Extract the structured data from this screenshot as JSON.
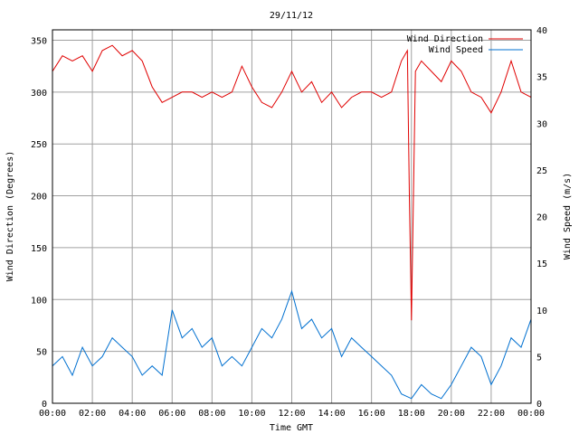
{
  "chart_data": {
    "type": "line",
    "title": "29/11/12",
    "xlabel": "Time GMT",
    "ylabel_left": "Wind Direction (Degrees)",
    "ylabel_right": "Wind Speed (m/s)",
    "x_ticks": [
      "00:00",
      "02:00",
      "04:00",
      "06:00",
      "08:00",
      "10:00",
      "12:00",
      "14:00",
      "16:00",
      "18:00",
      "20:00",
      "22:00",
      "00:00"
    ],
    "x_range_hours": [
      0,
      24
    ],
    "y_left_range": [
      0,
      360
    ],
    "y_left_ticks": [
      0,
      50,
      100,
      150,
      200,
      250,
      300,
      350
    ],
    "y_right_range": [
      0,
      40
    ],
    "y_right_ticks": [
      0,
      5,
      10,
      15,
      20,
      25,
      30,
      35,
      40
    ],
    "grid": true,
    "legend_position": "top-right",
    "series": [
      {
        "name": "Wind Direction",
        "axis": "left",
        "color": "#e00000",
        "x_hours": [
          0,
          0.5,
          1,
          1.5,
          2,
          2.5,
          3,
          3.5,
          4,
          4.5,
          5,
          5.5,
          6,
          6.5,
          7,
          7.5,
          8,
          8.5,
          9,
          9.5,
          10,
          10.5,
          11,
          11.5,
          12,
          12.5,
          13,
          13.5,
          14,
          14.5,
          15,
          15.5,
          16,
          16.5,
          17,
          17.5,
          17.8,
          17.9,
          18,
          18.2,
          18.5,
          19,
          19.5,
          20,
          20.5,
          21,
          21.5,
          22,
          22.5,
          23,
          23.5,
          24
        ],
        "values": [
          320,
          335,
          330,
          335,
          320,
          340,
          345,
          335,
          340,
          330,
          305,
          290,
          295,
          300,
          300,
          295,
          300,
          295,
          300,
          325,
          305,
          290,
          285,
          300,
          320,
          300,
          310,
          290,
          300,
          285,
          295,
          300,
          300,
          295,
          300,
          330,
          340,
          200,
          80,
          320,
          330,
          320,
          310,
          330,
          320,
          300,
          295,
          280,
          300,
          330,
          300,
          295
        ]
      },
      {
        "name": "Wind Speed",
        "axis": "right",
        "color": "#0070d0",
        "x_hours": [
          0,
          0.5,
          1,
          1.5,
          2,
          2.5,
          3,
          3.5,
          4,
          4.5,
          5,
          5.5,
          6,
          6.5,
          7,
          7.5,
          8,
          8.5,
          9,
          9.5,
          10,
          10.5,
          11,
          11.5,
          12,
          12.5,
          13,
          13.5,
          14,
          14.5,
          15,
          15.5,
          16,
          16.5,
          17,
          17.5,
          18,
          18.5,
          19,
          19.5,
          20,
          20.5,
          21,
          21.5,
          22,
          22.5,
          23,
          23.5,
          24
        ],
        "values": [
          4,
          5,
          3,
          6,
          4,
          5,
          7,
          6,
          5,
          3,
          4,
          3,
          10,
          7,
          8,
          6,
          7,
          4,
          5,
          4,
          6,
          8,
          7,
          9,
          12,
          8,
          9,
          7,
          8,
          5,
          7,
          6,
          5,
          4,
          3,
          1,
          0.5,
          2,
          1,
          0.5,
          2,
          4,
          6,
          5,
          2,
          4,
          7,
          6,
          9
        ]
      }
    ]
  }
}
